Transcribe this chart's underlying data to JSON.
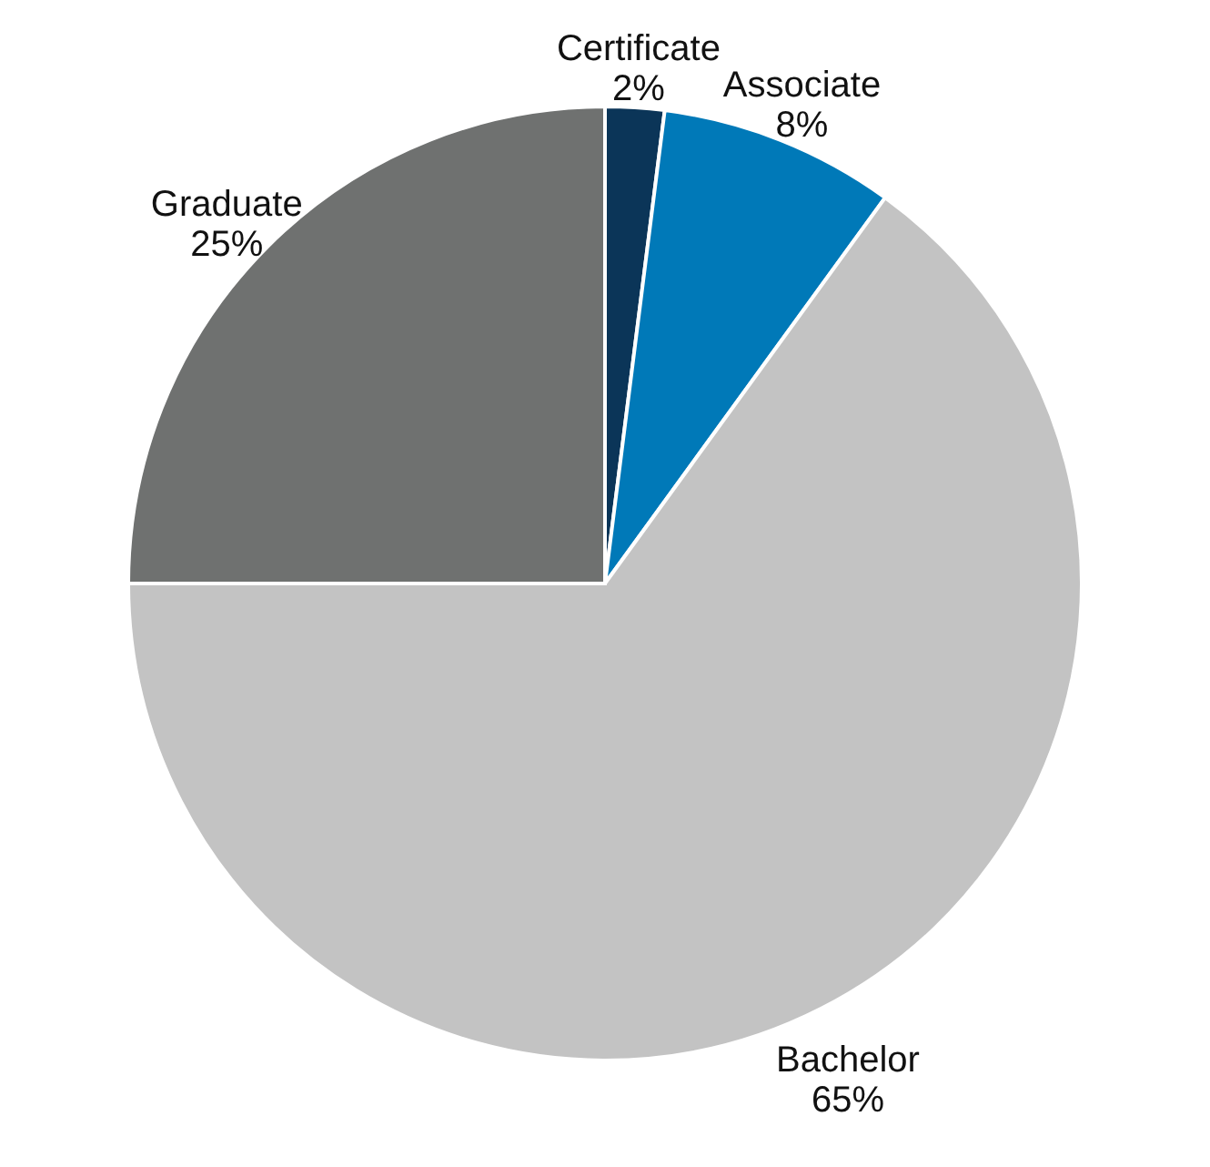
{
  "chart_data": {
    "type": "pie",
    "categories": [
      "Certificate",
      "Associate",
      "Bachelor",
      "Graduate"
    ],
    "values": [
      2,
      8,
      65,
      25
    ],
    "colors": [
      "#0b3558",
      "#0079b8",
      "#c3c3c3",
      "#6f7170"
    ],
    "value_labels": [
      "2%",
      "8%",
      "65%",
      "25%"
    ]
  }
}
